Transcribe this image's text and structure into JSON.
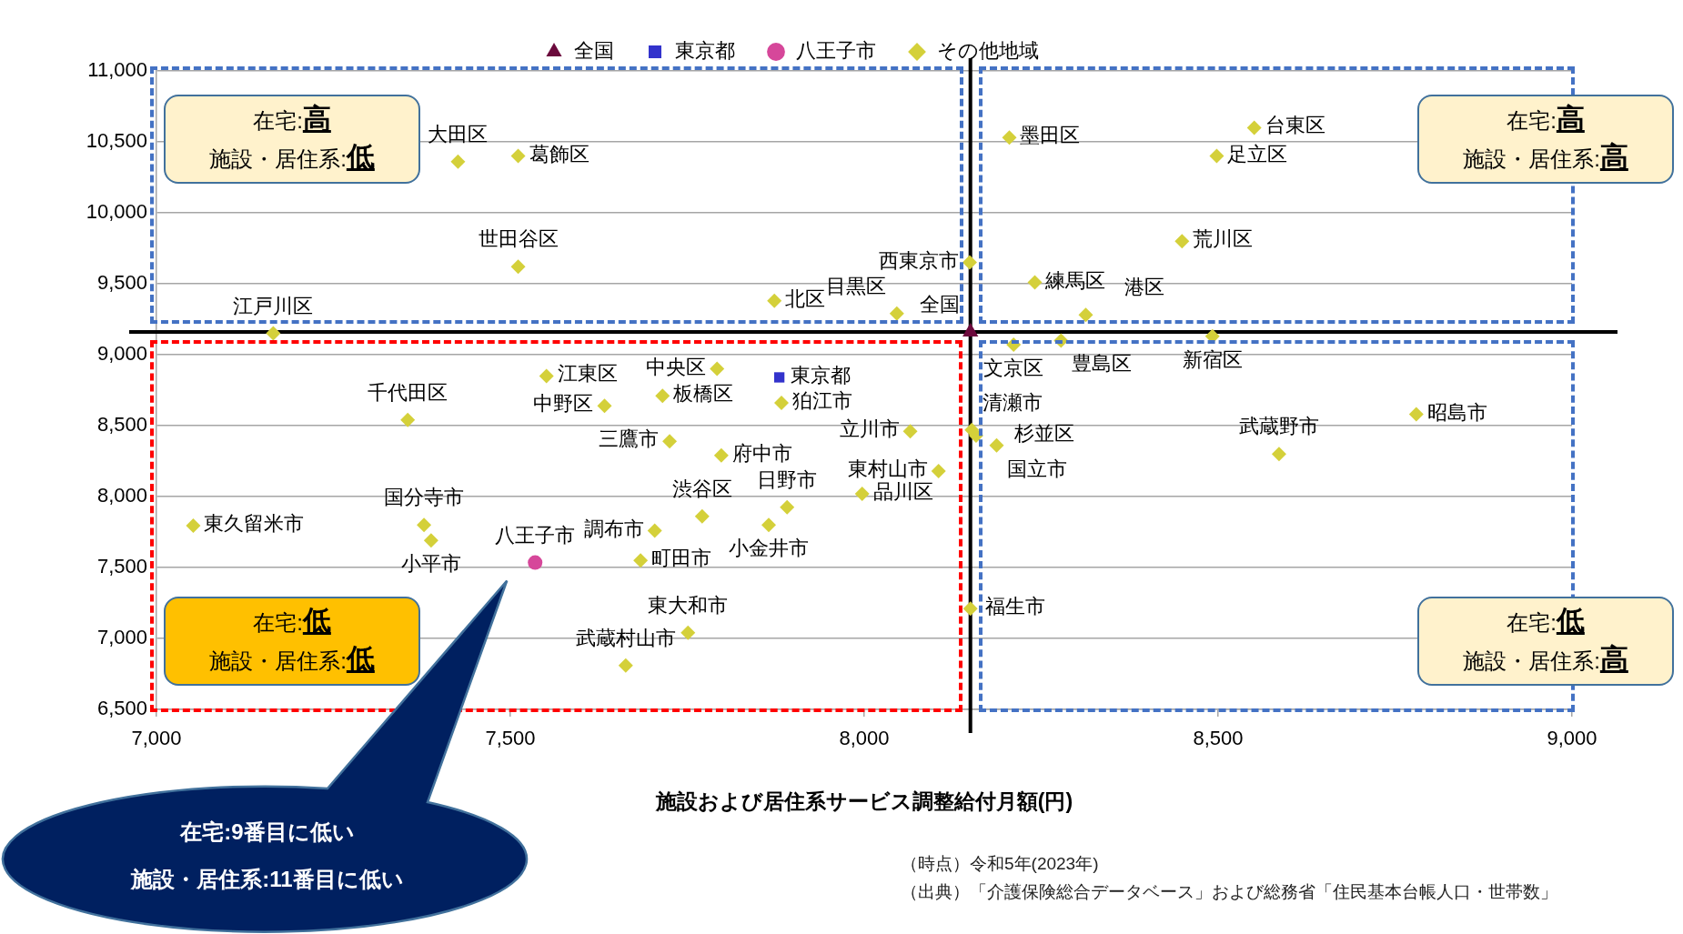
{
  "chart_data": {
    "type": "scatter",
    "xlabel": "施設および居住系サービス調整給付月額(円)",
    "xlim": [
      7000,
      9000
    ],
    "xticks": [
      {
        "value": 7000,
        "label": "7,000"
      },
      {
        "value": 7500,
        "label": "7,500"
      },
      {
        "value": 8000,
        "label": "8,000"
      },
      {
        "value": 8500,
        "label": "8,500"
      },
      {
        "value": 9000,
        "label": "9,000"
      }
    ],
    "ylim": [
      6500,
      11000
    ],
    "yticks": [
      {
        "value": 6500,
        "label": "6,500"
      },
      {
        "value": 7000,
        "label": "7,000"
      },
      {
        "value": 7500,
        "label": "7,500"
      },
      {
        "value": 8000,
        "label": "8,000"
      },
      {
        "value": 8500,
        "label": "8,500"
      },
      {
        "value": 9000,
        "label": "9,000"
      },
      {
        "value": 9500,
        "label": "9,500"
      },
      {
        "value": 10000,
        "label": "10,000"
      },
      {
        "value": 10500,
        "label": "10,500"
      },
      {
        "value": 11000,
        "label": "11,000"
      }
    ],
    "grid": "y",
    "legend": "top",
    "series": [
      {
        "name": "全国",
        "color": "#6b0a3c",
        "marker": "triangle",
        "x": [
          8150
        ],
        "values": [
          9160
        ]
      },
      {
        "name": "東京都",
        "color": "#3333cc",
        "marker": "square",
        "x": [
          7880
        ],
        "values": [
          8840
        ]
      },
      {
        "name": "八王子市",
        "color": "#d6479a",
        "marker": "circle",
        "x": [
          7535
        ],
        "values": [
          7535
        ]
      },
      {
        "name": "その他地域",
        "color": "#d4d03a",
        "marker": "diamond",
        "x": [
          7165,
          7426,
          7511,
          7511,
          7873,
          8046,
          8149,
          8241,
          8313,
          8205,
          8551,
          8498,
          8449,
          8492,
          8211,
          8278,
          7551,
          7792,
          7715,
          7633,
          7883,
          7355,
          7725,
          7798,
          8065,
          8152,
          8158,
          8187,
          8105,
          7997,
          7891,
          7771,
          7865,
          7704,
          7378,
          7388,
          7052,
          7684,
          7751,
          7663,
          8150,
          8780,
          8586
        ],
        "values": [
          9150,
          10360,
          10400,
          9620,
          9380,
          9290,
          9650,
          9510,
          9280,
          10530,
          10600,
          10400,
          9800,
          9130,
          9070,
          9100,
          8850,
          8900,
          8710,
          8640,
          8660,
          8540,
          8390,
          8290,
          8460,
          8470,
          8430,
          8360,
          8180,
          8020,
          7925,
          7860,
          7800,
          7760,
          7800,
          7690,
          7795,
          7550,
          7040,
          6810,
          7210,
          8580,
          8300
        ]
      }
    ],
    "ref_lines": [
      {
        "axis": "x",
        "value": 8150,
        "color": "#000000"
      },
      {
        "axis": "y",
        "value": 9160,
        "color": "#000000"
      }
    ],
    "annotations": [
      "在宅:高",
      "施設・居住系:低",
      "在宅:高",
      "施設・居住系:高",
      "在宅:低",
      "施設・居住系:低",
      "在宅:低",
      "施設・居住系:高",
      "在宅:9番目に低い",
      "施設・居住系:11番目に低い",
      "（時点）令和5年(2023年)",
      "（出典）「介護保険総合データベース」および総務省「住民基本台帳人口・世帯数」",
      {
        "text": "全国",
        "x": 8150,
        "y": 9160
      },
      {
        "text": "東京都",
        "x": 7880,
        "y": 8840
      },
      {
        "text": "八王子市",
        "x": 7535,
        "y": 7535
      },
      {
        "text": "江戸川区",
        "x": 7165,
        "y": 9150
      },
      {
        "text": "大田区",
        "x": 7426,
        "y": 10360
      },
      {
        "text": "葛飾区",
        "x": 7511,
        "y": 10400
      },
      {
        "text": "世田谷区",
        "x": 7511,
        "y": 9620
      },
      {
        "text": "北区",
        "x": 7873,
        "y": 9380
      },
      {
        "text": "目黒区",
        "x": 8046,
        "y": 9290
      },
      {
        "text": "西東京市",
        "x": 8149,
        "y": 9650
      },
      {
        "text": "練馬区",
        "x": 8241,
        "y": 9510
      },
      {
        "text": "港区",
        "x": 8313,
        "y": 9280
      },
      {
        "text": "墨田区",
        "x": 8205,
        "y": 10530
      },
      {
        "text": "台東区",
        "x": 8551,
        "y": 10600
      },
      {
        "text": "足立区",
        "x": 8498,
        "y": 10400
      },
      {
        "text": "荒川区",
        "x": 8449,
        "y": 9800
      },
      {
        "text": "新宿区",
        "x": 8492,
        "y": 9130
      },
      {
        "text": "文京区",
        "x": 8211,
        "y": 9070
      },
      {
        "text": "豊島区",
        "x": 8278,
        "y": 9100
      },
      {
        "text": "江東区",
        "x": 7551,
        "y": 8850
      },
      {
        "text": "中央区",
        "x": 7792,
        "y": 8900
      },
      {
        "text": "板橋区",
        "x": 7715,
        "y": 8710
      },
      {
        "text": "中野区",
        "x": 7633,
        "y": 8640
      },
      {
        "text": "狛江市",
        "x": 7883,
        "y": 8660
      },
      {
        "text": "千代田区",
        "x": 7355,
        "y": 8540
      },
      {
        "text": "三鷹市",
        "x": 7725,
        "y": 8390
      },
      {
        "text": "府中市",
        "x": 7798,
        "y": 8290
      },
      {
        "text": "立川市",
        "x": 8065,
        "y": 8460
      },
      {
        "text": "清瀬市",
        "x": 8152,
        "y": 8470
      },
      {
        "text": "杉並区",
        "x": 8158,
        "y": 8430
      },
      {
        "text": "国立市",
        "x": 8187,
        "y": 8360
      },
      {
        "text": "東村山市",
        "x": 8105,
        "y": 8180
      },
      {
        "text": "品川区",
        "x": 7997,
        "y": 8020
      },
      {
        "text": "日野市",
        "x": 7891,
        "y": 7925
      },
      {
        "text": "渋谷区",
        "x": 7771,
        "y": 7860
      },
      {
        "text": "小金井市",
        "x": 7865,
        "y": 7800
      },
      {
        "text": "調布市",
        "x": 7704,
        "y": 7760
      },
      {
        "text": "国分寺市",
        "x": 7378,
        "y": 7800
      },
      {
        "text": "小平市",
        "x": 7388,
        "y": 7690
      },
      {
        "text": "東久留米市",
        "x": 7052,
        "y": 7795
      },
      {
        "text": "町田市",
        "x": 7684,
        "y": 7550
      },
      {
        "text": "東大和市",
        "x": 7751,
        "y": 7040
      },
      {
        "text": "武蔵村山市",
        "x": 7663,
        "y": 6810
      },
      {
        "text": "福生市",
        "x": 8150,
        "y": 7210
      },
      {
        "text": "昭島市",
        "x": 8780,
        "y": 8580
      },
      {
        "text": "武蔵野市",
        "x": 8586,
        "y": 8300
      }
    ]
  }
}
